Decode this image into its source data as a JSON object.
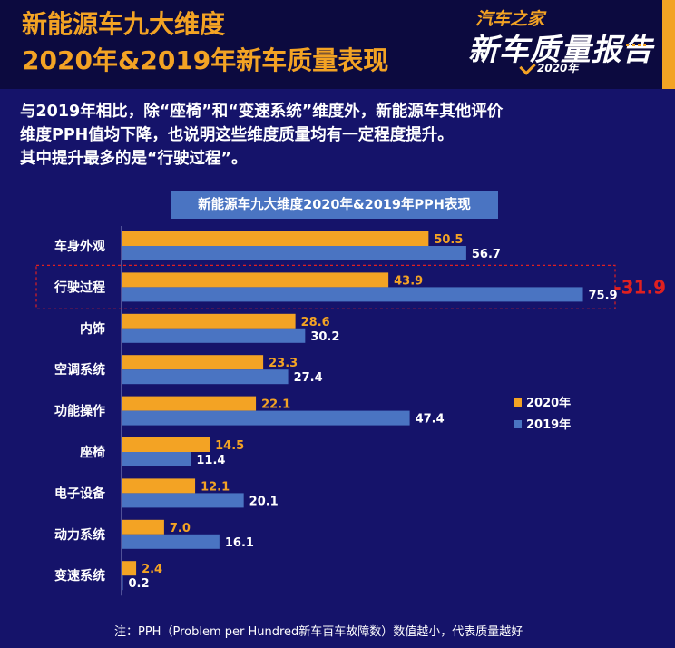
{
  "header": {
    "title_line1": "新能源车九大维度",
    "title_line2": "2020年&2019年新车质量表现",
    "brand_top": "汽车之家",
    "brand_main": "新车质量报告",
    "brand_year": "2020年"
  },
  "summary": {
    "line1": "与2019年相比，除“座椅”和“变速系统”维度外，新能源车其他评价",
    "line2": "维度PPH值均下降，也说明这些维度质量均有一定程度提升。",
    "line3": "其中提升最多的是“行驶过程”。"
  },
  "colors": {
    "orange": "#f3a324",
    "blue": "#4a74c2",
    "background": "#15136a",
    "highlight": "#e02020"
  },
  "chart_data": {
    "type": "bar",
    "orientation": "horizontal",
    "title": "新能源车九大维度2020年&2019年PPH表现",
    "categories": [
      "车身外观",
      "行驶过程",
      "内饰",
      "空调系统",
      "功能操作",
      "座椅",
      "电子设备",
      "动力系统",
      "变速系统"
    ],
    "series": [
      {
        "name": "2020年",
        "color": "#f3a324",
        "values": [
          50.5,
          43.9,
          28.6,
          23.3,
          22.1,
          14.5,
          12.1,
          7.0,
          2.4
        ],
        "labels": [
          "50.5",
          "43.9",
          "28.6",
          "23.3",
          "22.1",
          "14.5",
          "12.1",
          "7.0",
          "2.4"
        ]
      },
      {
        "name": "2019年",
        "color": "#4a74c2",
        "values": [
          56.7,
          75.9,
          30.2,
          27.4,
          47.4,
          11.4,
          20.1,
          16.1,
          0.2
        ],
        "labels": [
          "56.7",
          "75.9",
          "30.2",
          "27.4",
          "47.4",
          "11.4",
          "20.1",
          "16.1",
          "0.2"
        ]
      }
    ],
    "xlim": [
      0,
      80
    ],
    "legend_position": "right",
    "highlight": {
      "category": "行驶过程",
      "label": "-31.9"
    }
  },
  "footnote": "注：PPH（Problem per Hundred新车百车故障数）数值越小，代表质量越好"
}
